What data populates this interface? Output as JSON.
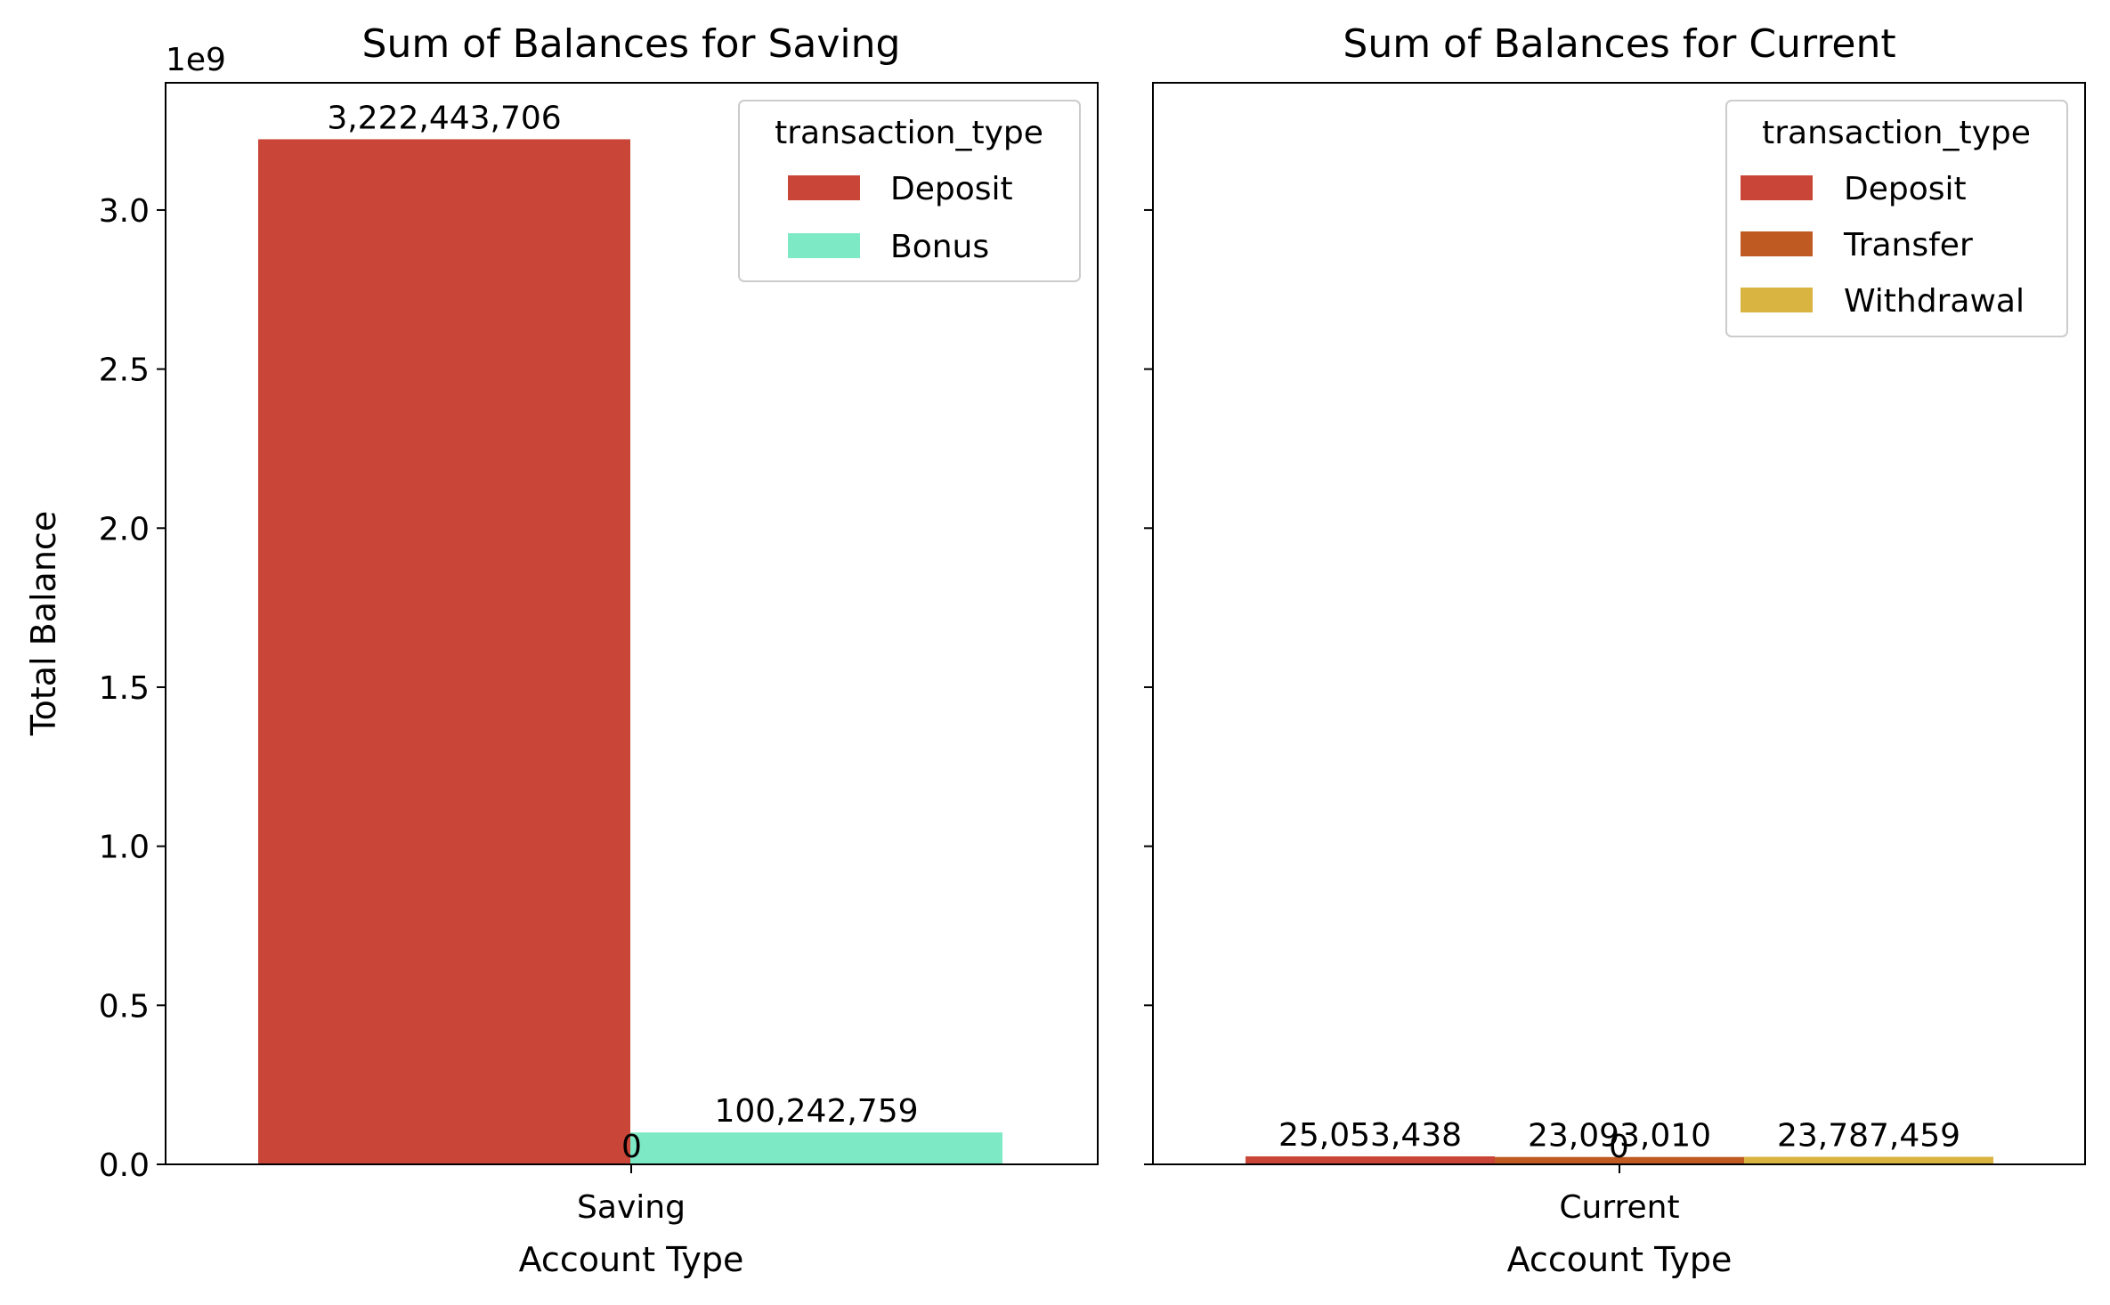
{
  "chart_data": [
    {
      "type": "bar",
      "title": "Sum of Balances for Saving",
      "xlabel": "Account Type",
      "ylabel": "Total Balance",
      "offset_text": "1e9",
      "categories": [
        "Saving"
      ],
      "ylim": [
        0,
        3400000000.0
      ],
      "yticks": [
        0,
        500000000.0,
        1000000000.0,
        1500000000.0,
        2000000000.0,
        2500000000.0,
        3000000000.0
      ],
      "ytick_labels": [
        "0.0",
        "0.5",
        "1.0",
        "1.5",
        "2.0",
        "2.5",
        "3.0"
      ],
      "series": [
        {
          "name": "Deposit",
          "values": [
            3222443706
          ],
          "label": "3,222,443,706",
          "color": "#c94537"
        },
        {
          "name": "Bonus",
          "values": [
            100242759
          ],
          "label": "100,242,759",
          "color": "#7de9c5"
        }
      ],
      "extra_labels": [
        "0"
      ],
      "legend": {
        "title": "transaction_type",
        "position": "top-right"
      }
    },
    {
      "type": "bar",
      "title": "Sum of Balances for Current",
      "xlabel": "Account Type",
      "ylabel": "",
      "categories": [
        "Current"
      ],
      "ylim": [
        0,
        3400000000.0
      ],
      "series": [
        {
          "name": "Deposit",
          "values": [
            25053438
          ],
          "label": "25,053,438",
          "color": "#c94537"
        },
        {
          "name": "Transfer",
          "values": [
            23093010
          ],
          "label": "23,093,010",
          "color": "#bf5a22"
        },
        {
          "name": "Withdrawal",
          "values": [
            23787459
          ],
          "label": "23,787,459",
          "color": "#dab441"
        }
      ],
      "extra_labels": [
        "0"
      ],
      "legend": {
        "title": "transaction_type",
        "position": "top-right"
      }
    }
  ]
}
